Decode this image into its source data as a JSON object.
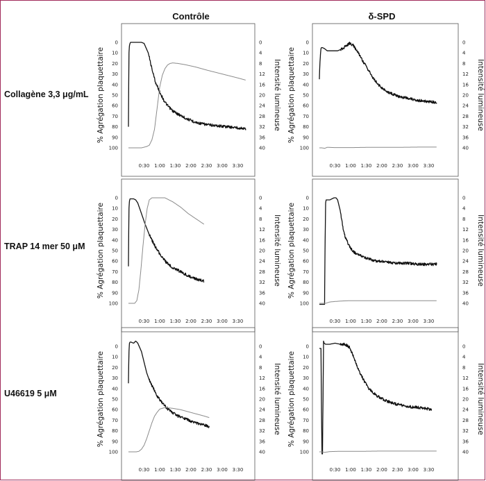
{
  "column_titles": [
    "Contrôle",
    "δ-SPD"
  ],
  "row_labels": [
    "Collagène 3,3 μg/mL",
    "TRAP 14 mer 50 μM",
    "U46619 5 μM"
  ],
  "colors": {
    "frame": "#a02a5a",
    "aggregation": "#111111",
    "luminescence": "#8a8a8a"
  },
  "chart_data": [
    {
      "type": "line",
      "title": "Contrôle",
      "row": "Collagène 3,3 μg/mL",
      "xlabel": "",
      "ylabel": "% Agrégation plaquettaire",
      "y2label": "Intensité lumineuse",
      "xticks": [
        "0:30",
        "1:00",
        "1:30",
        "2:00",
        "2:30",
        "3:00",
        "3:30"
      ],
      "yticks": [
        0,
        10,
        20,
        30,
        40,
        50,
        60,
        70,
        80,
        90,
        100
      ],
      "y2ticks": [
        0,
        4,
        8,
        12,
        16,
        20,
        24,
        28,
        32,
        36,
        40
      ],
      "xlim": [
        0,
        240
      ],
      "ylim": [
        100,
        0
      ],
      "y2lim": [
        40,
        0
      ],
      "series": [
        {
          "axis": "left",
          "x": [
            0,
            1,
            2,
            3,
            4,
            25,
            30,
            38,
            45,
            52,
            60,
            68,
            75,
            85,
            95,
            110,
            130,
            150,
            170,
            190,
            210,
            225
          ],
          "y": [
            80,
            10,
            3,
            1,
            0,
            0,
            1,
            10,
            25,
            38,
            47,
            55,
            60,
            65,
            68,
            72,
            76,
            78,
            79,
            80,
            81,
            82
          ]
        },
        {
          "axis": "right",
          "x": [
            0,
            25,
            35,
            40,
            45,
            50,
            55,
            60,
            65,
            70,
            75,
            80,
            85,
            95,
            110,
            130,
            150,
            170,
            190,
            210,
            225
          ],
          "y2": [
            40,
            40,
            39.5,
            39,
            37,
            33,
            25,
            17,
            12.5,
            10,
            8.6,
            8,
            7.8,
            8,
            8.5,
            9.4,
            10.5,
            11.5,
            12.5,
            13.5,
            14.3
          ]
        }
      ]
    },
    {
      "type": "line",
      "title": "δ-SPD",
      "row": "Collagène 3,3 μg/mL",
      "xlabel": "",
      "ylabel": "% Agrégation plaquettaire",
      "y2label": "Intensité lumineuse",
      "xticks": [
        "0:30",
        "1:00",
        "1:30",
        "2:00",
        "2:30",
        "3:00",
        "3:30"
      ],
      "yticks": [
        0,
        10,
        20,
        30,
        40,
        50,
        60,
        70,
        80,
        90,
        100
      ],
      "y2ticks": [
        0,
        4,
        8,
        12,
        16,
        20,
        24,
        28,
        32,
        36,
        40
      ],
      "xlim": [
        0,
        240
      ],
      "ylim": [
        100,
        0
      ],
      "y2lim": [
        40,
        0
      ],
      "series": [
        {
          "axis": "left",
          "x": [
            0,
            1,
            2,
            3,
            4,
            6,
            10,
            15,
            25,
            35,
            45,
            52,
            58,
            65,
            75,
            85,
            95,
            105,
            115,
            130,
            150,
            170,
            190,
            205,
            225
          ],
          "y": [
            35,
            20,
            12,
            6,
            5,
            5,
            6,
            8,
            8,
            8,
            6,
            3,
            1,
            3,
            10,
            19,
            27,
            35,
            41,
            47,
            51,
            53,
            55,
            56,
            57
          ]
        },
        {
          "axis": "right",
          "x": [
            0,
            5,
            10,
            15,
            30,
            60,
            100,
            150,
            200,
            225
          ],
          "y2": [
            40,
            40,
            40.2,
            39.8,
            39.9,
            39.9,
            39.8,
            39.8,
            39.7,
            39.7
          ]
        }
      ]
    },
    {
      "type": "line",
      "title": "Contrôle",
      "row": "TRAP 14 mer 50 μM",
      "xlabel": "",
      "ylabel": "% Agrégation plaquettaire",
      "y2label": "Intensité lumineuse",
      "xticks": [
        "0:30",
        "1:00",
        "1:30",
        "2:00",
        "2:30",
        "3:00",
        "3:30"
      ],
      "yticks": [
        0,
        10,
        20,
        30,
        40,
        50,
        60,
        70,
        80,
        90,
        100
      ],
      "y2ticks": [
        0,
        4,
        8,
        12,
        16,
        20,
        24,
        28,
        32,
        36,
        40
      ],
      "xlim": [
        0,
        240
      ],
      "ylim": [
        100,
        0
      ],
      "y2lim": [
        40,
        0
      ],
      "series": [
        {
          "axis": "left",
          "x": [
            0,
            1,
            2,
            3,
            5,
            10,
            14,
            18,
            25,
            32,
            40,
            50,
            60,
            72,
            85,
            100,
            115,
            130,
            145
          ],
          "y": [
            65,
            10,
            3,
            1,
            1,
            1,
            2,
            5,
            15,
            25,
            35,
            45,
            53,
            61,
            66,
            70,
            74,
            77,
            79
          ]
        },
        {
          "axis": "right",
          "x": [
            0,
            12,
            16,
            20,
            24,
            28,
            32,
            36,
            40,
            45,
            55,
            70,
            85,
            100,
            115,
            130,
            145
          ],
          "y2": [
            40,
            40,
            39,
            35,
            27,
            18,
            10,
            4,
            0.8,
            0,
            0,
            0,
            1.5,
            3.5,
            6,
            8,
            10
          ]
        }
      ]
    },
    {
      "type": "line",
      "title": "δ-SPD",
      "row": "TRAP 14 mer 50 μM",
      "xlabel": "",
      "ylabel": "% Agrégation plaquettaire",
      "y2label": "Intensité lumineuse",
      "xticks": [
        "0:30",
        "1:00",
        "1:30",
        "2:00",
        "2:30",
        "3:00",
        "3:30"
      ],
      "yticks": [
        0,
        10,
        20,
        30,
        40,
        50,
        60,
        70,
        80,
        90,
        100
      ],
      "y2ticks": [
        0,
        4,
        8,
        12,
        16,
        20,
        24,
        28,
        32,
        36,
        40
      ],
      "xlim": [
        0,
        240
      ],
      "ylim": [
        100,
        0
      ],
      "y2lim": [
        40,
        0
      ],
      "series": [
        {
          "axis": "left",
          "x": [
            0,
            5,
            10,
            11,
            12,
            13,
            16,
            20,
            24,
            28,
            32,
            35,
            40,
            45,
            50,
            60,
            70,
            80,
            95,
            110,
            130,
            150,
            170,
            190,
            205,
            225
          ],
          "y": [
            101,
            101,
            101,
            40,
            5,
            2,
            2,
            2,
            1,
            0,
            0,
            2,
            12,
            28,
            38,
            48,
            53,
            55,
            58,
            60,
            61,
            62,
            62,
            63,
            63,
            63
          ]
        },
        {
          "axis": "right",
          "x": [
            0,
            12,
            20,
            30,
            45,
            60,
            90,
            130,
            180,
            225
          ],
          "y2": [
            40,
            40,
            39.5,
            39.3,
            39.1,
            39.0,
            39.0,
            39.0,
            39.0,
            39.0
          ]
        }
      ]
    },
    {
      "type": "line",
      "title": "Contrôle",
      "row": "U46619 5 μM",
      "xlabel": "",
      "ylabel": "% Agrégation plaquettaire",
      "y2label": "Intensité lumineuse",
      "xticks": [
        "0:30",
        "1:00",
        "1:30",
        "2:00",
        "2:30",
        "3:00",
        "3:30"
      ],
      "yticks": [
        0,
        10,
        20,
        30,
        40,
        50,
        60,
        70,
        80,
        90,
        100
      ],
      "y2ticks": [
        0,
        4,
        8,
        12,
        16,
        20,
        24,
        28,
        32,
        36,
        40
      ],
      "xlim": [
        0,
        240
      ],
      "ylim": [
        100,
        0
      ],
      "y2lim": [
        40,
        0
      ],
      "series": [
        {
          "axis": "left",
          "x": [
            0,
            1,
            2,
            3,
            5,
            10,
            14,
            18,
            25,
            30,
            35,
            40,
            48,
            55,
            65,
            75,
            85,
            95,
            110,
            125,
            140,
            155
          ],
          "y": [
            35,
            5,
            -3,
            -4,
            -4,
            -3,
            -5,
            -3,
            5,
            15,
            25,
            32,
            40,
            47,
            54,
            59,
            63,
            66,
            69,
            72,
            74,
            76
          ]
        },
        {
          "axis": "right",
          "x": [
            0,
            15,
            20,
            25,
            30,
            35,
            40,
            45,
            50,
            55,
            60,
            70,
            85,
            100,
            115,
            130,
            145,
            155
          ],
          "y2": [
            40,
            40,
            39.8,
            39,
            37.5,
            35,
            32,
            29,
            26.5,
            25,
            23.8,
            23.2,
            23.5,
            24,
            24.8,
            25.6,
            26.4,
            27
          ]
        }
      ]
    },
    {
      "type": "line",
      "title": "δ-SPD",
      "row": "U46619 5 μM",
      "xlabel": "",
      "ylabel": "% Agrégation plaquettaire",
      "y2label": "Intensité lumineuse",
      "xticks": [
        "0:30",
        "1:00",
        "1:30",
        "2:00",
        "2:30",
        "3:00",
        "3:30"
      ],
      "yticks": [
        0,
        10,
        20,
        30,
        40,
        50,
        60,
        70,
        80,
        90,
        100
      ],
      "y2ticks": [
        0,
        4,
        8,
        12,
        16,
        20,
        24,
        28,
        32,
        36,
        40
      ],
      "xlim": [
        0,
        240
      ],
      "ylim": [
        100,
        0
      ],
      "y2lim": [
        40,
        0
      ],
      "series": [
        {
          "axis": "left",
          "x": [
            0,
            3,
            5,
            6,
            7,
            8,
            9,
            12,
            20,
            30,
            40,
            48,
            53,
            58,
            65,
            75,
            85,
            95,
            110,
            130,
            150,
            170,
            190,
            205,
            215
          ],
          "y": [
            2,
            2,
            102,
            102,
            50,
            -5,
            -3,
            -2,
            -2,
            -3,
            -2,
            -2,
            -1,
            1,
            9,
            22,
            32,
            40,
            47,
            52,
            55,
            57,
            58,
            59,
            60
          ]
        },
        {
          "axis": "right",
          "x": [
            0,
            5,
            10,
            20,
            40,
            80,
            120,
            160,
            200,
            225
          ],
          "y2": [
            40,
            40,
            40.2,
            39.9,
            39.8,
            39.8,
            39.7,
            39.7,
            39.7,
            39.7
          ]
        }
      ]
    }
  ]
}
